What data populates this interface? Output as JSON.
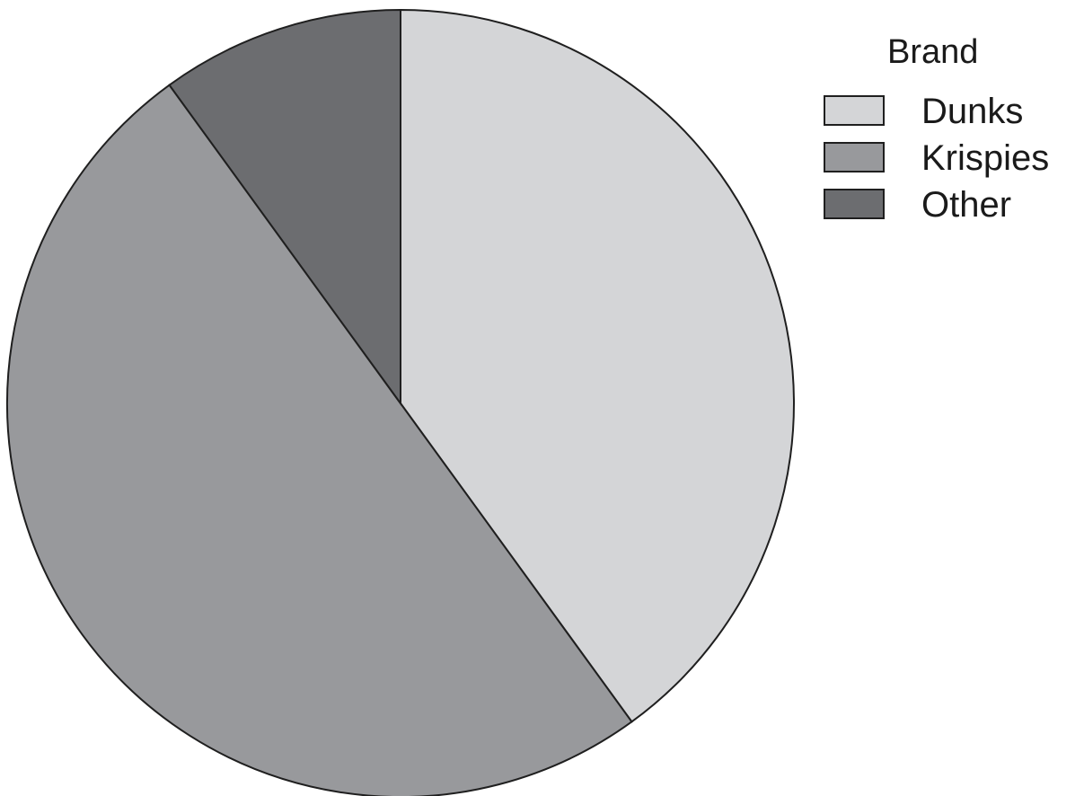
{
  "chart_data": {
    "type": "pie",
    "title": "",
    "legend": {
      "title": "Brand",
      "placement": "top-right"
    },
    "slices": [
      {
        "label": "Dunks",
        "value": 40,
        "color": "#d4d5d7"
      },
      {
        "label": "Krispies",
        "value": 50,
        "color": "#98999c"
      },
      {
        "label": "Other",
        "value": 10,
        "color": "#6c6d70"
      }
    ],
    "start_angle_deg": 0,
    "direction": "clockwise"
  }
}
